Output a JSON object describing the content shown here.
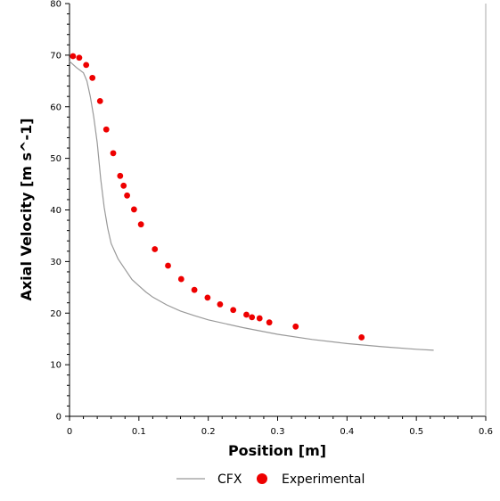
{
  "chart_data": {
    "type": "scatter",
    "xlabel": "Position [m]",
    "ylabel": "Axial Velocity [m s^-1]",
    "xlim": [
      0,
      0.6
    ],
    "ylim": [
      0,
      80
    ],
    "x_ticks": [
      "0",
      "0.1",
      "0.2",
      "0.3",
      "0.4",
      "0.5",
      "0.6"
    ],
    "y_ticks": [
      "0",
      "10",
      "20",
      "30",
      "40",
      "50",
      "60",
      "70",
      "80"
    ],
    "grid": false,
    "legend_position": "bottom",
    "series": [
      {
        "name": "CFX",
        "kind": "line",
        "color": "#999999",
        "x": [
          0.0,
          0.01,
          0.02,
          0.025,
          0.03,
          0.035,
          0.04,
          0.045,
          0.05,
          0.055,
          0.06,
          0.07,
          0.08,
          0.09,
          0.1,
          0.11,
          0.12,
          0.14,
          0.16,
          0.18,
          0.2,
          0.25,
          0.3,
          0.35,
          0.4,
          0.45,
          0.5,
          0.525
        ],
        "y": [
          68.8,
          67.6,
          66.6,
          65.0,
          62.0,
          58.0,
          53.0,
          46.0,
          40.5,
          36.5,
          33.5,
          30.5,
          28.5,
          26.5,
          25.3,
          24.1,
          23.1,
          21.6,
          20.4,
          19.5,
          18.7,
          17.2,
          15.9,
          14.9,
          14.1,
          13.5,
          13.0,
          12.8
        ]
      },
      {
        "name": "Experimental",
        "kind": "scatter",
        "color": "#ee0000",
        "x": [
          0.005,
          0.014,
          0.024,
          0.033,
          0.044,
          0.053,
          0.063,
          0.073,
          0.078,
          0.083,
          0.093,
          0.103,
          0.123,
          0.142,
          0.161,
          0.18,
          0.199,
          0.217,
          0.236,
          0.255,
          0.263,
          0.274,
          0.288,
          0.326,
          0.421
        ],
        "y": [
          69.8,
          69.5,
          68.1,
          65.6,
          61.1,
          55.6,
          51.0,
          46.6,
          44.7,
          42.8,
          40.1,
          37.2,
          32.4,
          29.2,
          26.6,
          24.5,
          23.0,
          21.7,
          20.6,
          19.7,
          19.2,
          19.0,
          18.2,
          17.4,
          15.3
        ]
      }
    ]
  }
}
